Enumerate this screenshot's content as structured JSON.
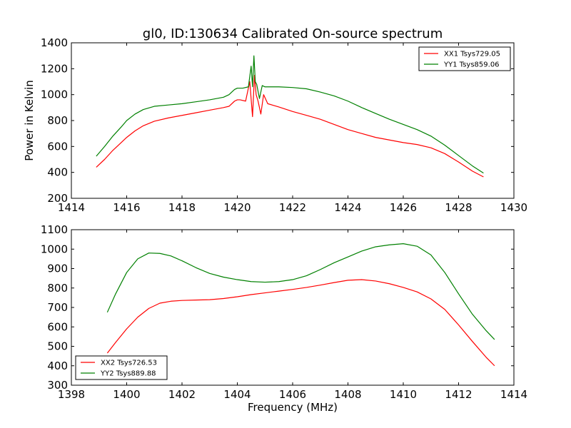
{
  "figure": {
    "title": "gl0, ID:130634 Calibrated On-source spectrum",
    "xlabel": "Frequency (MHz)"
  },
  "chart_data": [
    {
      "type": "line",
      "title": "gl0, ID:130634 Calibrated On-source spectrum",
      "xlabel": "",
      "ylabel": "Power in Kelvin",
      "xlim": [
        1414,
        1430
      ],
      "ylim": [
        200,
        1400
      ],
      "xticks": [
        "1414",
        "1416",
        "1418",
        "1420",
        "1422",
        "1424",
        "1426",
        "1428",
        "1430"
      ],
      "yticks": [
        "200",
        "400",
        "600",
        "800",
        "1000",
        "1200",
        "1400"
      ],
      "legend": "top-right",
      "grid": false,
      "series": [
        {
          "name": "XX1 Tsys729.05",
          "color": "#ff0000",
          "x": [
            1414.9,
            1415.2,
            1415.5,
            1415.8,
            1416.0,
            1416.3,
            1416.6,
            1417.0,
            1417.5,
            1418.0,
            1418.5,
            1419.0,
            1419.5,
            1419.7,
            1419.9,
            1420.0,
            1420.1,
            1420.3,
            1420.45,
            1420.55,
            1420.62,
            1420.68,
            1420.75,
            1420.85,
            1420.95,
            1421.1,
            1421.5,
            1422.0,
            1422.5,
            1423.0,
            1423.5,
            1424.0,
            1424.5,
            1425.0,
            1425.5,
            1426.0,
            1426.5,
            1427.0,
            1427.5,
            1428.0,
            1428.5,
            1428.9
          ],
          "y": [
            440,
            500,
            570,
            630,
            670,
            720,
            760,
            795,
            820,
            840,
            860,
            880,
            900,
            910,
            950,
            960,
            960,
            950,
            1100,
            830,
            1150,
            1000,
            950,
            850,
            1000,
            930,
            905,
            870,
            840,
            810,
            770,
            730,
            700,
            670,
            650,
            630,
            615,
            590,
            545,
            480,
            410,
            365
          ]
        },
        {
          "name": "YY1 Tsys859.06",
          "color": "#008000",
          "x": [
            1414.9,
            1415.2,
            1415.5,
            1415.8,
            1416.0,
            1416.3,
            1416.6,
            1417.0,
            1417.5,
            1418.0,
            1418.5,
            1419.0,
            1419.5,
            1419.7,
            1419.9,
            1420.0,
            1420.2,
            1420.4,
            1420.5,
            1420.55,
            1420.6,
            1420.65,
            1420.7,
            1420.8,
            1420.9,
            1421.0,
            1421.5,
            1422.0,
            1422.5,
            1423.0,
            1423.5,
            1424.0,
            1424.5,
            1425.0,
            1425.5,
            1426.0,
            1426.5,
            1427.0,
            1427.5,
            1428.0,
            1428.5,
            1428.9
          ],
          "y": [
            525,
            600,
            680,
            750,
            800,
            850,
            885,
            910,
            920,
            930,
            945,
            960,
            980,
            1000,
            1040,
            1050,
            1050,
            1060,
            1220,
            1060,
            1300,
            1100,
            1080,
            970,
            1070,
            1060,
            1060,
            1055,
            1045,
            1020,
            990,
            950,
            900,
            855,
            810,
            770,
            730,
            680,
            610,
            530,
            450,
            395
          ]
        }
      ]
    },
    {
      "type": "line",
      "title": "",
      "xlabel": "Frequency (MHz)",
      "ylabel": "",
      "xlim": [
        1398,
        1414
      ],
      "ylim": [
        300,
        1100
      ],
      "xticks": [
        "1398",
        "1400",
        "1402",
        "1404",
        "1406",
        "1408",
        "1410",
        "1412",
        "1414"
      ],
      "yticks": [
        "300",
        "400",
        "500",
        "600",
        "700",
        "800",
        "900",
        "1000",
        "1100"
      ],
      "legend": "bottom-left",
      "grid": false,
      "series": [
        {
          "name": "XX2 Tsys726.53",
          "color": "#ff0000",
          "x": [
            1399.3,
            1399.6,
            1400.0,
            1400.4,
            1400.8,
            1401.2,
            1401.6,
            1402.0,
            1402.5,
            1403.0,
            1403.5,
            1404.0,
            1404.5,
            1405.0,
            1405.5,
            1406.0,
            1406.5,
            1407.0,
            1407.5,
            1408.0,
            1408.5,
            1409.0,
            1409.5,
            1410.0,
            1410.5,
            1411.0,
            1411.5,
            1412.0,
            1412.5,
            1413.0,
            1413.3
          ],
          "y": [
            465,
            520,
            590,
            650,
            695,
            722,
            732,
            736,
            738,
            740,
            746,
            755,
            766,
            775,
            784,
            793,
            803,
            815,
            828,
            840,
            843,
            836,
            822,
            803,
            780,
            744,
            690,
            610,
            525,
            443,
            400
          ]
        },
        {
          "name": "YY2 Tsys889.88",
          "color": "#008000",
          "x": [
            1399.3,
            1399.6,
            1400.0,
            1400.4,
            1400.8,
            1401.2,
            1401.6,
            1402.0,
            1402.5,
            1403.0,
            1403.5,
            1404.0,
            1404.5,
            1405.0,
            1405.5,
            1406.0,
            1406.5,
            1407.0,
            1407.5,
            1408.0,
            1408.5,
            1409.0,
            1409.5,
            1410.0,
            1410.5,
            1411.0,
            1411.5,
            1412.0,
            1412.5,
            1413.0,
            1413.3
          ],
          "y": [
            675,
            770,
            880,
            950,
            980,
            978,
            965,
            940,
            905,
            875,
            856,
            843,
            833,
            830,
            833,
            843,
            863,
            895,
            930,
            960,
            990,
            1012,
            1022,
            1028,
            1015,
            970,
            880,
            770,
            665,
            580,
            535
          ]
        }
      ]
    }
  ]
}
